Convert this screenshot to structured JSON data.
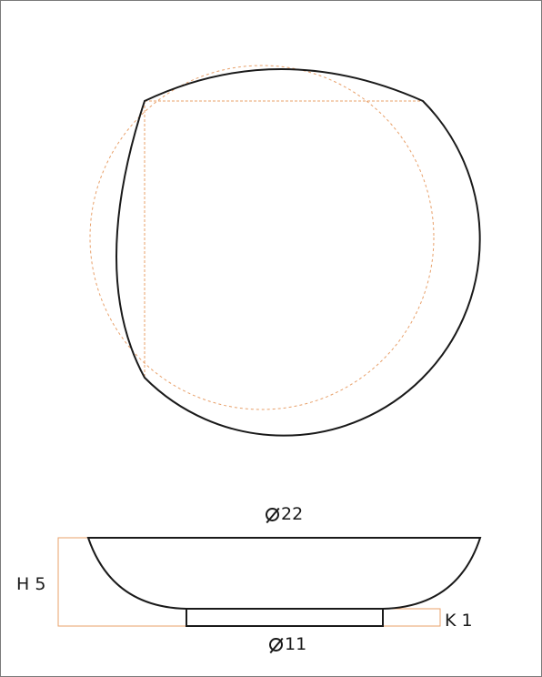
{
  "dimensions": {
    "top_diameter": "22",
    "height": "H 5",
    "base_height": "K 1",
    "base_diameter": "11"
  },
  "colors": {
    "outline": "#1a1a1a",
    "guide": "#e8a06a",
    "border": "#7a7a7a"
  }
}
